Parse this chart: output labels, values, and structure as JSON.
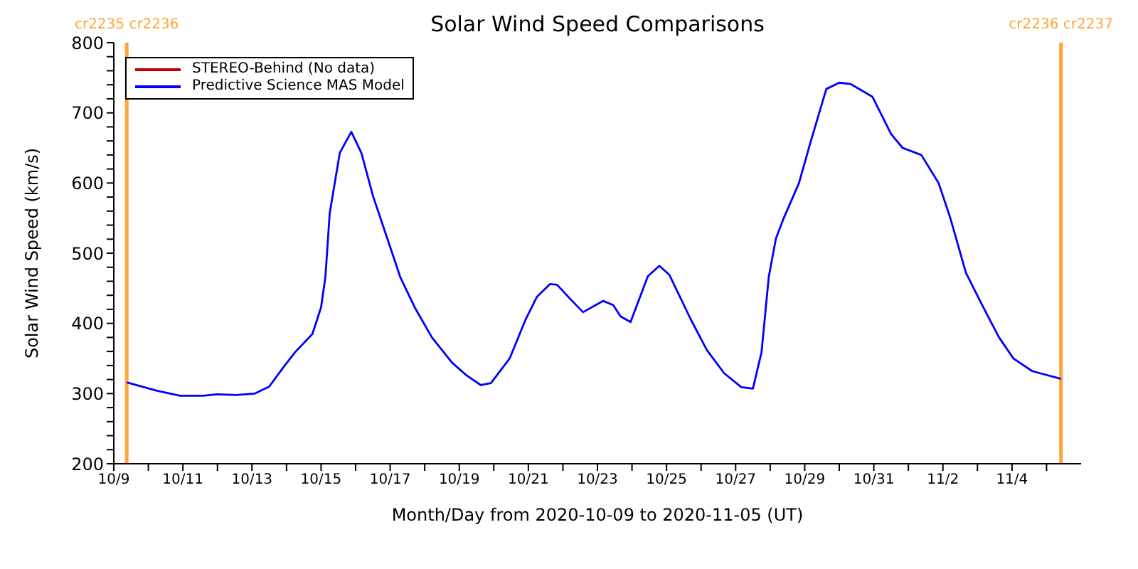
{
  "chart_data": {
    "type": "line",
    "title": "Solar Wind Speed Comparisons",
    "xlabel": "Month/Day from 2020-10-09 to 2020-11-05 (UT)",
    "ylabel": "Solar Wind Speed (km/s)",
    "xlim": [
      "2020-10-09",
      "2020-11-06"
    ],
    "xticks": [
      {
        "value": "2020-10-09",
        "label": "10/9"
      },
      {
        "value": "2020-10-10",
        "label": null
      },
      {
        "value": "2020-10-11",
        "label": "10/11"
      },
      {
        "value": "2020-10-12",
        "label": null
      },
      {
        "value": "2020-10-13",
        "label": "10/13"
      },
      {
        "value": "2020-10-14",
        "label": null
      },
      {
        "value": "2020-10-15",
        "label": "10/15"
      },
      {
        "value": "2020-10-16",
        "label": null
      },
      {
        "value": "2020-10-17",
        "label": "10/17"
      },
      {
        "value": "2020-10-18",
        "label": null
      },
      {
        "value": "2020-10-19",
        "label": "10/19"
      },
      {
        "value": "2020-10-20",
        "label": null
      },
      {
        "value": "2020-10-21",
        "label": "10/21"
      },
      {
        "value": "2020-10-22",
        "label": null
      },
      {
        "value": "2020-10-23",
        "label": "10/23"
      },
      {
        "value": "2020-10-24",
        "label": null
      },
      {
        "value": "2020-10-25",
        "label": "10/25"
      },
      {
        "value": "2020-10-26",
        "label": null
      },
      {
        "value": "2020-10-27",
        "label": "10/27"
      },
      {
        "value": "2020-10-28",
        "label": null
      },
      {
        "value": "2020-10-29",
        "label": "10/29"
      },
      {
        "value": "2020-10-30",
        "label": null
      },
      {
        "value": "2020-10-31",
        "label": "10/31"
      },
      {
        "value": "2020-11-01",
        "label": null
      },
      {
        "value": "2020-11-02",
        "label": "11/2"
      },
      {
        "value": "2020-11-03",
        "label": null
      },
      {
        "value": "2020-11-04",
        "label": "11/4"
      },
      {
        "value": "2020-11-05",
        "label": null
      }
    ],
    "ylim": [
      200,
      800
    ],
    "yticks": [
      200,
      {
        "value": 220,
        "label": null
      },
      {
        "value": 240,
        "label": null
      },
      {
        "value": 260,
        "label": null
      },
      {
        "value": 280,
        "label": null
      },
      300,
      {
        "value": 320,
        "label": null
      },
      {
        "value": 340,
        "label": null
      },
      {
        "value": 360,
        "label": null
      },
      {
        "value": 380,
        "label": null
      },
      400,
      {
        "value": 420,
        "label": null
      },
      {
        "value": 440,
        "label": null
      },
      {
        "value": 460,
        "label": null
      },
      {
        "value": 480,
        "label": null
      },
      500,
      {
        "value": 520,
        "label": null
      },
      {
        "value": 540,
        "label": null
      },
      {
        "value": 560,
        "label": null
      },
      {
        "value": 580,
        "label": null
      },
      600,
      {
        "value": 620,
        "label": null
      },
      {
        "value": 640,
        "label": null
      },
      {
        "value": 660,
        "label": null
      },
      {
        "value": 680,
        "label": null
      },
      700,
      {
        "value": 720,
        "label": null
      },
      {
        "value": 740,
        "label": null
      },
      {
        "value": 760,
        "label": null
      },
      {
        "value": 780,
        "label": null
      },
      800
    ],
    "legend": "top left",
    "marker": "none",
    "line_style": "solid",
    "ref_lines": [
      {
        "axis": "x",
        "value": "2020-10-09T09:00",
        "label": "cr2235 cr2236",
        "color": "#ffa53a"
      },
      {
        "axis": "x",
        "value": "2020-11-05T10:00",
        "label": "cr2236 cr2237",
        "color": "#ffa53a"
      }
    ],
    "x": [
      "2020-10-09T09:00",
      "2020-10-10T06:00",
      "2020-10-10T22:00",
      "2020-10-11T14:00",
      "2020-10-12T00:00",
      "2020-10-12T13:00",
      "2020-10-13T02:00",
      "2020-10-13T12:00",
      "2020-10-13T22:00",
      "2020-10-14T06:00",
      "2020-10-14T18:00",
      "2020-10-15T00:00",
      "2020-10-15T03:00",
      "2020-10-15T06:00",
      "2020-10-15T13:00",
      "2020-10-15T21:00",
      "2020-10-16T04:00",
      "2020-10-16T12:00",
      "2020-10-16T22:00",
      "2020-10-17T07:00",
      "2020-10-17T17:00",
      "2020-10-18T05:00",
      "2020-10-18T19:00",
      "2020-10-19T05:00",
      "2020-10-19T15:00",
      "2020-10-19T22:00",
      "2020-10-20T11:00",
      "2020-10-20T22:00",
      "2020-10-21T06:00",
      "2020-10-21T15:00",
      "2020-10-21T20:00",
      "2020-10-22T05:00",
      "2020-10-22T14:00",
      "2020-10-23T04:00",
      "2020-10-23T11:00",
      "2020-10-23T16:00",
      "2020-10-23T23:00",
      "2020-10-24T11:00",
      "2020-10-24T19:00",
      "2020-10-25T02:00",
      "2020-10-25T17:00",
      "2020-10-26T04:00",
      "2020-10-26T16:00",
      "2020-10-27T04:00",
      "2020-10-27T12:00",
      "2020-10-27T18:00",
      "2020-10-27T23:00",
      "2020-10-28T04:00",
      "2020-10-28T09:00",
      "2020-10-28T20:00",
      "2020-10-29T04:00",
      "2020-10-29T15:00",
      "2020-10-30T00:00",
      "2020-10-30T08:00",
      "2020-10-30T23:00",
      "2020-10-31T12:00",
      "2020-10-31T20:00",
      "2020-11-01T09:00",
      "2020-11-01T21:00",
      "2020-11-02T05:00",
      "2020-11-02T16:00",
      "2020-11-03T04:00",
      "2020-11-03T15:00",
      "2020-11-04T01:00",
      "2020-11-04T14:00",
      "2020-11-05T10:00"
    ],
    "series": [
      {
        "name": "STEREO-Behind (No data)",
        "color": "#c00000",
        "values": [
          null,
          null,
          null,
          null,
          null,
          null,
          null,
          null,
          null,
          null,
          null,
          null,
          null,
          null,
          null,
          null,
          null,
          null,
          null,
          null,
          null,
          null,
          null,
          null,
          null,
          null,
          null,
          null,
          null,
          null,
          null,
          null,
          null,
          null,
          null,
          null,
          null,
          null,
          null,
          null,
          null,
          null,
          null,
          null,
          null,
          null,
          null,
          null,
          null,
          null,
          null,
          null,
          null,
          null,
          null,
          null,
          null,
          null,
          null,
          null,
          null,
          null,
          null,
          null,
          null,
          null
        ]
      },
      {
        "name": "Predictive Science MAS Model",
        "color": "#0000ff",
        "values": [
          316,
          304,
          297,
          297,
          299,
          298,
          300,
          310,
          338,
          359,
          385,
          423,
          466,
          557,
          643,
          673,
          643,
          582,
          521,
          466,
          423,
          380,
          344,
          326,
          312,
          315,
          350,
          405,
          438,
          456,
          455,
          435,
          416,
          432,
          426,
          410,
          402,
          467,
          482,
          469,
          405,
          362,
          329,
          309,
          307,
          359,
          466,
          521,
          548,
          600,
          658,
          734,
          743,
          741,
          723,
          670,
          650,
          640,
          600,
          551,
          472,
          423,
          380,
          350,
          332,
          321
        ]
      }
    ]
  }
}
